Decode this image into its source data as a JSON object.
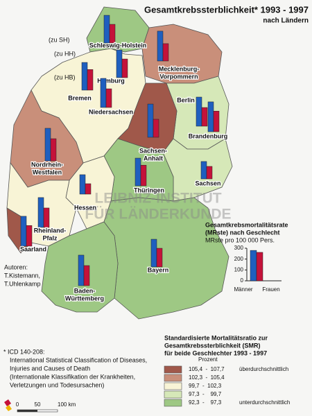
{
  "title": "Gesamtkrebssterblichkeit* 1993 - 1997",
  "subtitle": "nach Ländern",
  "city_notes": [
    "(zu SH)",
    "(zu HH)",
    "(zu HB)"
  ],
  "watermark": [
    "LEIBNIZ-INSTITUT",
    "FÜR LÄNDERKUNDE"
  ],
  "authors": [
    "Autoren:",
    "T.Kistemann,",
    "T.Uhlenkamp"
  ],
  "bar_colors": [
    "#1f5fbf",
    "#c4123a"
  ],
  "states": [
    {
      "name": [
        "Schleswig-Holstein"
      ],
      "color": "#9ec884",
      "values": [
        255,
        172
      ]
    },
    {
      "name": [
        "Hamburg"
      ],
      "color": "#c98f7a",
      "values": [
        255,
        172
      ]
    },
    {
      "name": [
        "Bremen"
      ],
      "color": "#c98f7a",
      "values": [
        255,
        190
      ]
    },
    {
      "name": [
        "Niedersachsen"
      ],
      "color": "#f8f4d6",
      "values": [
        268,
        172
      ]
    },
    {
      "name": [
        "Mecklenburg-",
        "Vorpommern"
      ],
      "color": "#c98f7a",
      "values": [
        275,
        160
      ]
    },
    {
      "name": [
        "Berlin"
      ],
      "color": "#d6e8b8",
      "values": [
        268,
        172
      ]
    },
    {
      "name": [
        "Brandenburg"
      ],
      "color": "#d6e8b8",
      "values": [
        275,
        190
      ]
    },
    {
      "name": [
        "Sachsen-",
        "Anhalt"
      ],
      "color": "#a0584a",
      "values": [
        306,
        166
      ]
    },
    {
      "name": [
        "Sachsen"
      ],
      "color": "#d6e8b8",
      "values": [
        160,
        115
      ]
    },
    {
      "name": [
        "Thüringen"
      ],
      "color": "#9ec884",
      "values": [
        255,
        190
      ]
    },
    {
      "name": [
        "Hessen"
      ],
      "color": "#f8f4d6",
      "values": [
        179,
        96
      ]
    },
    {
      "name": [
        "Nordrhein-",
        "Westfalen"
      ],
      "color": "#c98f7a",
      "values": [
        300,
        204
      ]
    },
    {
      "name": [
        "Rheinland-",
        "Pfalz"
      ],
      "color": "#f8f4d6",
      "values": [
        275,
        179
      ]
    },
    {
      "name": [
        "Saarland"
      ],
      "color": "#a0584a",
      "values": [
        275,
        190
      ]
    },
    {
      "name": [
        "Bayern"
      ],
      "color": "#9ec884",
      "values": [
        255,
        172
      ]
    },
    {
      "name": [
        "Baden-",
        "Württemberg"
      ],
      "color": "#9ec884",
      "values": [
        281,
        185
      ]
    }
  ],
  "chart_data": {
    "type": "bar",
    "title": [
      "Gesamtkrebsmortalitätsrate",
      "(MRste) nach Geschlecht"
    ],
    "subtitle": "MRste pro 100 000 Pers.",
    "categories": [
      "Männer",
      "Frauen"
    ],
    "values": [
      280,
      262
    ],
    "colors": [
      "#1f5fbf",
      "#c4123a"
    ],
    "ylim": [
      0,
      300
    ],
    "yticks": [
      0,
      100,
      200,
      300
    ]
  },
  "smr_legend": {
    "title": [
      "Standardisierte Mortalitätsratio zur",
      "Gesamtkrebssterblichkeit (SMR)",
      "für beide Geschlechter 1993 - 1997"
    ],
    "unit": "Prozent",
    "classes": [
      {
        "range": "105,4  -  107,7",
        "color": "#a0584a"
      },
      {
        "range": "102,3  -  105,4",
        "color": "#c98f7a"
      },
      {
        "range": "99,7  -  102,3",
        "color": "#f8f4d6"
      },
      {
        "range": "97,3  -    99,7",
        "color": "#d6e8b8"
      },
      {
        "range": "92,3  -    97,3",
        "color": "#9ec884"
      }
    ],
    "high_label": "überdurchschnittlich",
    "low_label": "unterdurchschnittlich"
  },
  "footnote": [
    "* ICD 140-208:",
    "International Statistical Classification of Diseases,",
    "Injuries and Causes of Death",
    "(Internationale Klassifikation der Krankheiten,",
    "Verletzungen und Todesursachen)"
  ],
  "scale": [
    "0",
    "50",
    "100 km"
  ]
}
